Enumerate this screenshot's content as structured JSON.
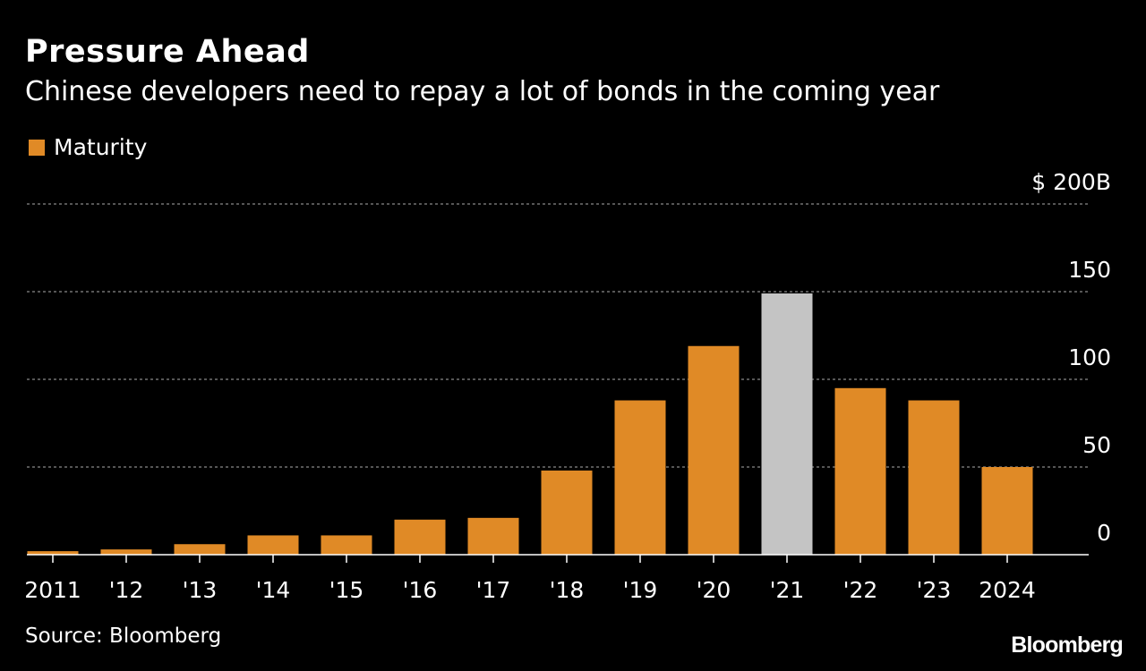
{
  "chart_data": {
    "type": "bar",
    "title": "Pressure Ahead",
    "subtitle": "Chinese developers need to repay a lot of bonds in the coming year",
    "legend": [
      {
        "label": "Maturity",
        "color": "#E08A26"
      }
    ],
    "categories": [
      "2011",
      "'12",
      "'13",
      "'14",
      "'15",
      "'16",
      "'17",
      "'18",
      "'19",
      "'20",
      "'21",
      "'22",
      "'23",
      "2024"
    ],
    "series": [
      {
        "name": "Maturity",
        "values": [
          2,
          3,
          6,
          11,
          11,
          20,
          21,
          48,
          88,
          119,
          149,
          95,
          88,
          50
        ]
      }
    ],
    "highlight_index": 10,
    "bar_color": "#E08A26",
    "highlight_color": "#C4C4C4",
    "ylim": [
      0,
      200
    ],
    "yticks": [
      0,
      50,
      100,
      150,
      200
    ],
    "ytick_labels": [
      "0",
      "50",
      "100",
      "150",
      "$ 200B"
    ],
    "xlabel": "",
    "ylabel": "",
    "grid": true,
    "legend_position": "top-left"
  },
  "footer": {
    "source": "Source: Bloomberg",
    "logo": "Bloomberg"
  }
}
